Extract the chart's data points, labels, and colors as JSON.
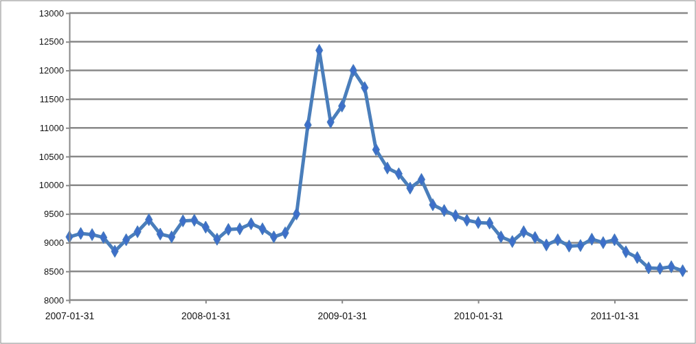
{
  "chart_data": {
    "type": "line",
    "categories": [
      "2007-01-31",
      null,
      null,
      null,
      null,
      null,
      null,
      null,
      null,
      null,
      null,
      null,
      "2008-01-31",
      null,
      null,
      null,
      null,
      null,
      null,
      null,
      null,
      null,
      null,
      null,
      "2009-01-31",
      null,
      null,
      null,
      null,
      null,
      null,
      null,
      null,
      null,
      null,
      null,
      "2010-01-31",
      null,
      null,
      null,
      null,
      null,
      null,
      null,
      null,
      null,
      null,
      null,
      "2011-01-31",
      null,
      null,
      null,
      null,
      null,
      null
    ],
    "series": [
      {
        "color": "#4a7ebb",
        "values": [
          9100,
          9160,
          9140,
          9090,
          8850,
          9050,
          9190,
          9400,
          9150,
          9100,
          9380,
          9390,
          9270,
          9060,
          9230,
          9240,
          9330,
          9240,
          9100,
          9170,
          9500,
          11050,
          12350,
          11100,
          11380,
          12000,
          11700,
          10620,
          10300,
          10200,
          9950,
          10100,
          9660,
          9560,
          9470,
          9390,
          9350,
          9340,
          9100,
          9020,
          9190,
          9090,
          8960,
          9050,
          8940,
          8950,
          9060,
          9000,
          9050,
          8840,
          8740,
          8560,
          8550,
          8580,
          8510
        ]
      }
    ],
    "ylim": [
      8000,
      13000
    ],
    "yticks": [
      8000,
      8500,
      9000,
      9500,
      10000,
      10500,
      11000,
      11500,
      12000,
      12500,
      13000
    ],
    "grid": "y",
    "marker": "diamond",
    "line_style": "solid"
  }
}
